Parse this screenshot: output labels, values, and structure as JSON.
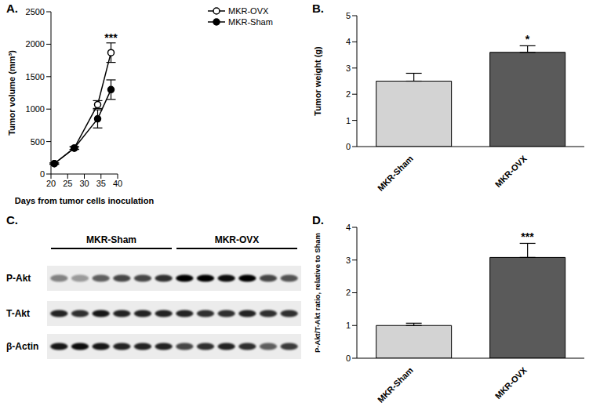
{
  "chart_data": [
    {
      "type": "line",
      "title": "A.",
      "x": [
        21,
        27,
        34,
        38
      ],
      "xlabel": "Days from tumor cells inoculation",
      "ylabel": "Tumor volume (mm³)",
      "xlim": [
        20,
        40
      ],
      "xticks": [
        20,
        25,
        30,
        35,
        40
      ],
      "ylim": [
        0,
        2500
      ],
      "yticks": [
        0,
        500,
        1000,
        1500,
        2000,
        2500
      ],
      "legend": "upper right",
      "series": [
        {
          "name": "MKR-OVX",
          "color": "#000000",
          "marker": "open circle",
          "values": [
            160,
            400,
            1070,
            1870
          ],
          "errors": [
            10,
            20,
            60,
            150
          ]
        },
        {
          "name": "MKR-Sham",
          "color": "#000000",
          "marker": "circle",
          "values": [
            160,
            400,
            850,
            1300
          ],
          "errors": [
            10,
            20,
            140,
            150
          ]
        }
      ],
      "annotations": [
        {
          "text": "***",
          "x": 38
        }
      ]
    },
    {
      "type": "bar",
      "title": "B.",
      "categories": [
        "MKR-Sham",
        "MKR-OVX"
      ],
      "ylabel": "Tumor weight (g)",
      "values": [
        2.5,
        3.6
      ],
      "errors": [
        0.3,
        0.25
      ],
      "colors": [
        "#d3d3d3",
        "#5a5a5a"
      ],
      "ylim": [
        0,
        5
      ],
      "yticks": [
        0,
        1,
        2,
        3,
        4,
        5
      ],
      "annotations": [
        {
          "text": "*",
          "category": "MKR-OVX"
        }
      ]
    },
    {
      "type": "western_blot",
      "title": "C.",
      "groups": [
        {
          "name": "MKR-Sham",
          "lanes": 6
        },
        {
          "name": "MKR-OVX",
          "lanes": 6
        }
      ],
      "rows": [
        {
          "name": "P-Akt",
          "values": [
            0.45,
            0.35,
            0.6,
            0.7,
            0.7,
            0.8,
            1,
            1,
            0.95,
            1,
            0.7,
            0.65
          ]
        },
        {
          "name": "T-Akt",
          "values": [
            0.85,
            0.8,
            0.9,
            0.85,
            0.85,
            0.85,
            0.85,
            0.8,
            0.8,
            0.85,
            0.8,
            0.8
          ]
        },
        {
          "name": "β-Actin",
          "values": [
            0.9,
            0.95,
            0.9,
            0.85,
            0.85,
            0.85,
            0.7,
            0.8,
            0.85,
            0.8,
            0.6,
            0.75
          ]
        }
      ]
    },
    {
      "type": "bar",
      "title": "D.",
      "categories": [
        "MKR-Sham",
        "MKR-OVX"
      ],
      "ylabel": "P-Akt/T-Akt ratio, relative to Sham",
      "values": [
        1.0,
        3.08
      ],
      "errors": [
        0.07,
        0.43
      ],
      "colors": [
        "#d3d3d3",
        "#5a5a5a"
      ],
      "ylim": [
        0,
        4
      ],
      "yticks": [
        0,
        1,
        2,
        3,
        4
      ],
      "annotations": [
        {
          "text": "***",
          "category": "MKR-OVX"
        }
      ]
    }
  ]
}
